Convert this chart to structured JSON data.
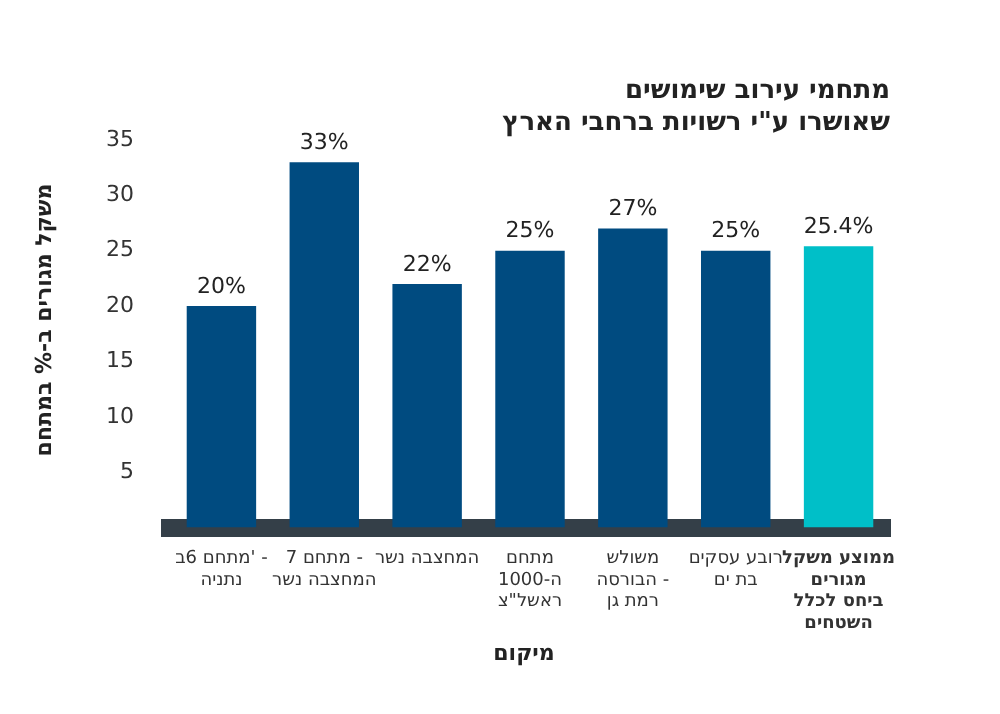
{
  "chart_data": {
    "type": "bar",
    "title": "מתחמי עירוב שימושים",
    "subtitle": "שאושרו ע\"י רשויות ברחבי הארץ",
    "xlabel": "מיקום",
    "ylabel": "משקל מגורים ב-% במתחם",
    "categories": [
      "מתחם 6ב' - נתניה",
      "מתחם 7 - המחצבה נשר",
      "המחצבה נשר",
      "מתחם ה-1000 ראשל\"צ",
      "משולש הבורסה - רמת גן",
      "רובע עסקים בת ים",
      "ממוצע משקל מגורים ביחס לכלל השטחים"
    ],
    "values": [
      20,
      33,
      22,
      25,
      27,
      25,
      25.4
    ],
    "colors": [
      "#004b80",
      "#004b80",
      "#004b80",
      "#004b80",
      "#004b80",
      "#004b80",
      "#00bfc8"
    ],
    "value_labels": [
      "20%",
      "33%",
      "22%",
      "25%",
      "27%",
      "25%",
      "25.4%"
    ],
    "ylim": [
      0,
      35
    ],
    "yticks": [
      5,
      10,
      15,
      20,
      25,
      30,
      35
    ],
    "grid": false,
    "legend": false
  }
}
